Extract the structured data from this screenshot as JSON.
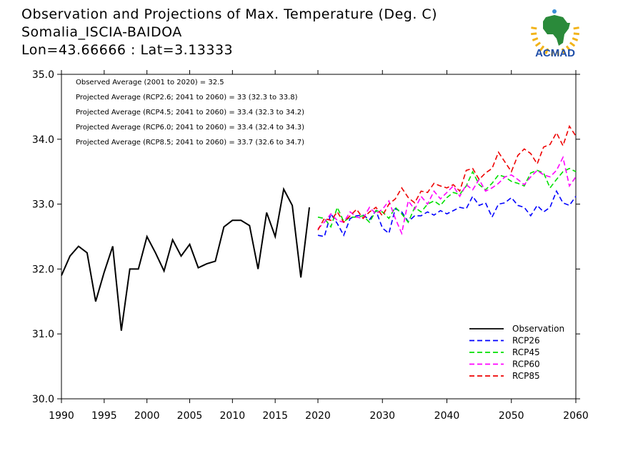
{
  "header": {
    "title": "Observation and Projections of Max. Temperature (Deg. C)",
    "station": "Somalia_ISCIA-BAIDOA",
    "coords": "Lon=43.66666 : Lat=3.13333"
  },
  "logo": {
    "text": "ACMAD",
    "icon": "africa-map-logo-icon",
    "color": "#2a8a3a",
    "text_color": "#1f4ea8",
    "sun_color": "#f2b318"
  },
  "annotations": [
    "Observed Average (2001 to 2020) = 32.5",
    "Projected Average (RCP2.6; 2041 to 2060) = 33 (32.3 to 33.8)",
    "Projected Average (RCP4.5; 2041 to 2060) = 33.4 (32.3 to 34.2)",
    "Projected Average (RCP6.0; 2041 to 2060) = 33.4 (32.4 to 34.3)",
    "Projected Average (RCP8.5; 2041 to 2060) = 33.7 (32.6 to 34.7)"
  ],
  "chart_data": {
    "type": "line",
    "xlim": [
      1990,
      2060
    ],
    "ylim": [
      30.0,
      35.0
    ],
    "x_ticks": [
      1990,
      1995,
      2000,
      2005,
      2010,
      2015,
      2020,
      2030,
      2040,
      2050,
      2060
    ],
    "y_ticks": [
      "30.0",
      "31.0",
      "32.0",
      "33.0",
      "34.0",
      "35.0"
    ],
    "legend_position": "bottom-right",
    "grid": false,
    "series": [
      {
        "name": "Observation",
        "color": "#000000",
        "dashed": false,
        "x": [
          1990,
          1991,
          1992,
          1993,
          1994,
          1995,
          1996,
          1997,
          1998,
          1999,
          2000,
          2001,
          2002,
          2003,
          2004,
          2005,
          2006,
          2007,
          2008,
          2009,
          2010,
          2011,
          2012,
          2013,
          2014,
          2015,
          2016,
          2017,
          2018,
          2019
        ],
        "values": [
          31.9,
          32.2,
          32.35,
          32.25,
          31.5,
          31.95,
          32.35,
          31.05,
          32.0,
          32.0,
          32.5,
          32.25,
          31.97,
          32.45,
          32.2,
          32.38,
          32.02,
          32.08,
          32.12,
          32.65,
          32.75,
          32.75,
          32.67,
          32.0,
          32.87,
          32.5,
          33.23,
          32.98,
          31.87,
          32.95
        ]
      },
      {
        "name": "RCP26",
        "color": "#0000ff",
        "dashed": true,
        "x": [
          2020,
          2021,
          2022,
          2023,
          2024,
          2025,
          2026,
          2027,
          2028,
          2029,
          2030,
          2031,
          2032,
          2033,
          2034,
          2035,
          2036,
          2037,
          2038,
          2039,
          2040,
          2041,
          2042,
          2043,
          2044,
          2045,
          2046,
          2047,
          2048,
          2049,
          2050,
          2051,
          2052,
          2053,
          2054,
          2055,
          2056,
          2057,
          2058,
          2059,
          2060
        ],
        "values": [
          32.52,
          32.5,
          32.85,
          32.7,
          32.52,
          32.78,
          32.82,
          32.83,
          32.76,
          32.9,
          32.63,
          32.55,
          32.93,
          32.88,
          32.73,
          32.82,
          32.82,
          32.88,
          32.83,
          32.9,
          32.85,
          32.9,
          32.95,
          32.93,
          33.12,
          32.98,
          33.02,
          32.8,
          33.0,
          33.02,
          33.1,
          32.98,
          32.95,
          32.82,
          32.98,
          32.88,
          32.95,
          33.2,
          33.02,
          32.98,
          33.12
        ]
      },
      {
        "name": "RCP45",
        "color": "#00e000",
        "dashed": true,
        "x": [
          2020,
          2021,
          2022,
          2023,
          2024,
          2025,
          2026,
          2027,
          2028,
          2029,
          2030,
          2031,
          2032,
          2033,
          2034,
          2035,
          2036,
          2037,
          2038,
          2039,
          2040,
          2041,
          2042,
          2043,
          2044,
          2045,
          2046,
          2047,
          2048,
          2049,
          2050,
          2051,
          2052,
          2053,
          2054,
          2055,
          2056,
          2057,
          2058,
          2059,
          2060
        ],
        "values": [
          32.8,
          32.78,
          32.65,
          32.95,
          32.73,
          32.8,
          32.8,
          32.82,
          32.72,
          32.9,
          32.88,
          32.78,
          32.95,
          32.85,
          32.72,
          32.95,
          32.88,
          33.0,
          33.05,
          32.98,
          33.1,
          33.18,
          33.15,
          33.28,
          33.5,
          33.3,
          33.22,
          33.32,
          33.45,
          33.42,
          33.35,
          33.32,
          33.28,
          33.48,
          33.52,
          33.48,
          33.25,
          33.38,
          33.5,
          33.55,
          33.5
        ]
      },
      {
        "name": "RCP60",
        "color": "#ff00ff",
        "dashed": true,
        "x": [
          2020,
          2021,
          2022,
          2023,
          2024,
          2025,
          2026,
          2027,
          2028,
          2029,
          2030,
          2031,
          2032,
          2033,
          2034,
          2035,
          2036,
          2037,
          2038,
          2039,
          2040,
          2041,
          2042,
          2043,
          2044,
          2045,
          2046,
          2047,
          2048,
          2049,
          2050,
          2051,
          2052,
          2053,
          2054,
          2055,
          2056,
          2057,
          2058,
          2059,
          2060
        ],
        "values": [
          32.62,
          32.72,
          32.85,
          32.75,
          32.72,
          32.88,
          32.8,
          32.78,
          32.95,
          32.85,
          32.92,
          33.05,
          32.78,
          32.55,
          33.05,
          32.92,
          33.12,
          33.0,
          33.2,
          33.08,
          33.18,
          33.28,
          33.12,
          33.3,
          33.22,
          33.38,
          33.2,
          33.25,
          33.32,
          33.42,
          33.45,
          33.38,
          33.3,
          33.42,
          33.52,
          33.45,
          33.42,
          33.52,
          33.72,
          33.28,
          33.42
        ]
      },
      {
        "name": "RCP85",
        "color": "#ee0000",
        "dashed": true,
        "x": [
          2020,
          2021,
          2022,
          2023,
          2024,
          2025,
          2026,
          2027,
          2028,
          2029,
          2030,
          2031,
          2032,
          2033,
          2034,
          2035,
          2036,
          2037,
          2038,
          2039,
          2040,
          2041,
          2042,
          2043,
          2044,
          2045,
          2046,
          2047,
          2048,
          2049,
          2050,
          2051,
          2052,
          2053,
          2054,
          2055,
          2056,
          2057,
          2058,
          2059,
          2060
        ],
        "values": [
          32.6,
          32.78,
          32.75,
          32.88,
          32.72,
          32.82,
          32.92,
          32.78,
          32.88,
          32.95,
          32.82,
          33.0,
          33.08,
          33.25,
          33.1,
          33.02,
          33.2,
          33.18,
          33.32,
          33.28,
          33.25,
          33.3,
          33.2,
          33.52,
          33.55,
          33.38,
          33.48,
          33.55,
          33.8,
          33.65,
          33.5,
          33.75,
          33.85,
          33.78,
          33.62,
          33.88,
          33.92,
          34.1,
          33.9,
          34.2,
          34.05
        ]
      }
    ]
  }
}
